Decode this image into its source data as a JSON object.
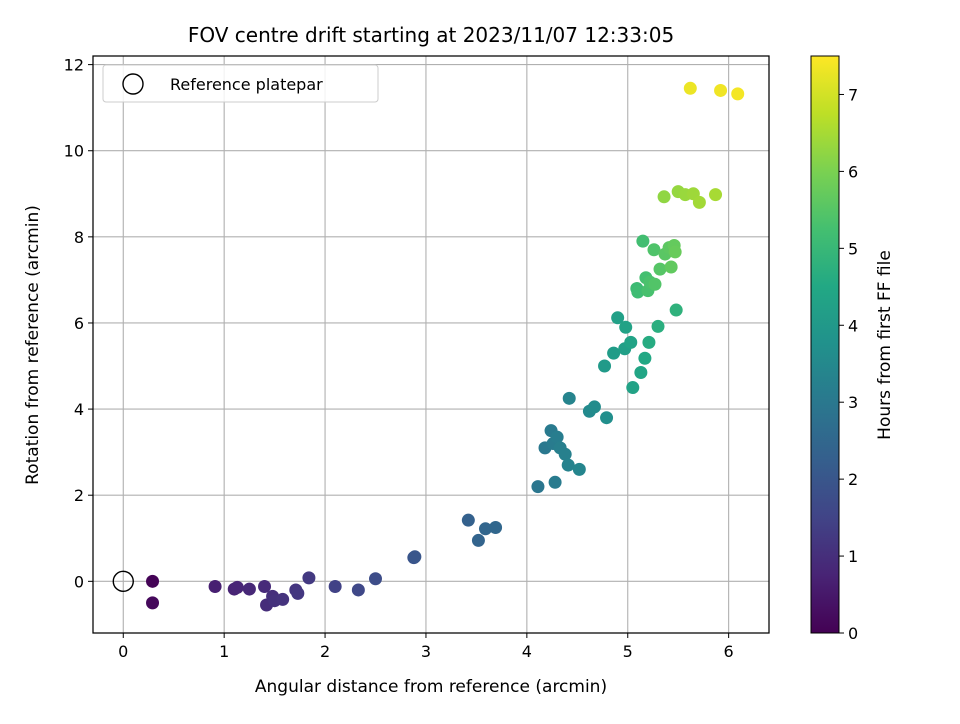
{
  "chart_data": {
    "type": "scatter",
    "title": "FOV centre drift starting at 2023/11/07 12:33:05",
    "xlabel": "Angular distance from reference (arcmin)",
    "ylabel": "Rotation from reference (arcmin)",
    "xlim": [
      -0.3,
      6.4
    ],
    "ylim": [
      -1.2,
      12.2
    ],
    "xticks": [
      "0",
      "1",
      "2",
      "3",
      "4",
      "5",
      "6"
    ],
    "yticks": [
      "0",
      "2",
      "4",
      "6",
      "8",
      "10",
      "12"
    ],
    "grid": true,
    "legend": {
      "placement": "top-left",
      "entries": [
        "Reference platepar"
      ]
    },
    "reference_point": {
      "x": 0,
      "y": 0
    },
    "colorbar": {
      "label": "Hours from first FF file",
      "range": [
        0,
        7.5
      ],
      "ticks": [
        "0",
        "1",
        "2",
        "3",
        "4",
        "5",
        "6",
        "7"
      ],
      "colormap": "viridis"
    },
    "points": [
      {
        "x": 0.29,
        "y": 0.0,
        "h": 0.05
      },
      {
        "x": 0.29,
        "y": -0.5,
        "h": 0.15
      },
      {
        "x": 0.91,
        "y": -0.12,
        "h": 0.65
      },
      {
        "x": 1.1,
        "y": -0.18,
        "h": 0.75
      },
      {
        "x": 1.13,
        "y": -0.14,
        "h": 0.8
      },
      {
        "x": 1.25,
        "y": -0.18,
        "h": 0.85
      },
      {
        "x": 1.4,
        "y": -0.12,
        "h": 0.9
      },
      {
        "x": 1.42,
        "y": -0.55,
        "h": 0.95
      },
      {
        "x": 1.48,
        "y": -0.35,
        "h": 1.0
      },
      {
        "x": 1.5,
        "y": -0.45,
        "h": 1.05
      },
      {
        "x": 1.58,
        "y": -0.42,
        "h": 1.1
      },
      {
        "x": 1.71,
        "y": -0.2,
        "h": 1.15
      },
      {
        "x": 1.73,
        "y": -0.28,
        "h": 1.2
      },
      {
        "x": 1.84,
        "y": 0.08,
        "h": 1.25
      },
      {
        "x": 2.1,
        "y": -0.12,
        "h": 1.45
      },
      {
        "x": 2.33,
        "y": -0.2,
        "h": 1.6
      },
      {
        "x": 2.5,
        "y": 0.06,
        "h": 1.75
      },
      {
        "x": 2.88,
        "y": 0.55,
        "h": 1.95
      },
      {
        "x": 2.89,
        "y": 0.57,
        "h": 2.0
      },
      {
        "x": 3.42,
        "y": 1.42,
        "h": 2.3
      },
      {
        "x": 3.52,
        "y": 0.95,
        "h": 2.4
      },
      {
        "x": 3.59,
        "y": 1.22,
        "h": 2.45
      },
      {
        "x": 3.69,
        "y": 1.25,
        "h": 2.5
      },
      {
        "x": 4.11,
        "y": 2.2,
        "h": 2.95
      },
      {
        "x": 4.18,
        "y": 3.1,
        "h": 3.0
      },
      {
        "x": 4.24,
        "y": 3.5,
        "h": 3.05
      },
      {
        "x": 4.26,
        "y": 3.2,
        "h": 3.1
      },
      {
        "x": 4.28,
        "y": 2.3,
        "h": 3.1
      },
      {
        "x": 4.3,
        "y": 3.35,
        "h": 3.15
      },
      {
        "x": 4.33,
        "y": 3.1,
        "h": 3.2
      },
      {
        "x": 4.38,
        "y": 2.95,
        "h": 3.25
      },
      {
        "x": 4.41,
        "y": 2.7,
        "h": 3.3
      },
      {
        "x": 4.42,
        "y": 4.25,
        "h": 3.35
      },
      {
        "x": 4.52,
        "y": 2.6,
        "h": 3.4
      },
      {
        "x": 4.62,
        "y": 3.95,
        "h": 3.55
      },
      {
        "x": 4.67,
        "y": 4.05,
        "h": 3.6
      },
      {
        "x": 4.79,
        "y": 3.8,
        "h": 3.7
      },
      {
        "x": 4.77,
        "y": 5.0,
        "h": 4.05
      },
      {
        "x": 4.86,
        "y": 5.3,
        "h": 4.1
      },
      {
        "x": 4.9,
        "y": 6.12,
        "h": 4.25
      },
      {
        "x": 4.97,
        "y": 5.4,
        "h": 4.2
      },
      {
        "x": 4.98,
        "y": 5.9,
        "h": 4.3
      },
      {
        "x": 5.03,
        "y": 5.55,
        "h": 4.35
      },
      {
        "x": 5.05,
        "y": 4.5,
        "h": 4.3
      },
      {
        "x": 5.13,
        "y": 4.85,
        "h": 4.4
      },
      {
        "x": 5.17,
        "y": 5.18,
        "h": 4.5
      },
      {
        "x": 5.21,
        "y": 5.55,
        "h": 4.6
      },
      {
        "x": 5.3,
        "y": 5.92,
        "h": 4.7
      },
      {
        "x": 5.48,
        "y": 6.3,
        "h": 4.8
      },
      {
        "x": 5.09,
        "y": 6.8,
        "h": 5.1
      },
      {
        "x": 5.1,
        "y": 6.72,
        "h": 5.15
      },
      {
        "x": 5.15,
        "y": 7.9,
        "h": 5.2
      },
      {
        "x": 5.18,
        "y": 7.05,
        "h": 5.25
      },
      {
        "x": 5.2,
        "y": 6.75,
        "h": 5.3
      },
      {
        "x": 5.22,
        "y": 6.95,
        "h": 5.35
      },
      {
        "x": 5.26,
        "y": 7.7,
        "h": 5.4
      },
      {
        "x": 5.27,
        "y": 6.9,
        "h": 5.45
      },
      {
        "x": 5.32,
        "y": 7.25,
        "h": 5.5
      },
      {
        "x": 5.37,
        "y": 7.6,
        "h": 5.55
      },
      {
        "x": 5.41,
        "y": 7.75,
        "h": 5.6
      },
      {
        "x": 5.43,
        "y": 7.3,
        "h": 5.65
      },
      {
        "x": 5.46,
        "y": 7.8,
        "h": 5.7
      },
      {
        "x": 5.47,
        "y": 7.65,
        "h": 5.75
      },
      {
        "x": 5.36,
        "y": 8.93,
        "h": 6.25
      },
      {
        "x": 5.5,
        "y": 9.05,
        "h": 6.3
      },
      {
        "x": 5.57,
        "y": 8.98,
        "h": 6.35
      },
      {
        "x": 5.65,
        "y": 9.0,
        "h": 6.4
      },
      {
        "x": 5.71,
        "y": 8.8,
        "h": 6.45
      },
      {
        "x": 5.87,
        "y": 8.98,
        "h": 6.5
      },
      {
        "x": 5.62,
        "y": 11.45,
        "h": 7.3
      },
      {
        "x": 5.92,
        "y": 11.4,
        "h": 7.35
      },
      {
        "x": 6.09,
        "y": 11.32,
        "h": 7.4
      }
    ]
  }
}
